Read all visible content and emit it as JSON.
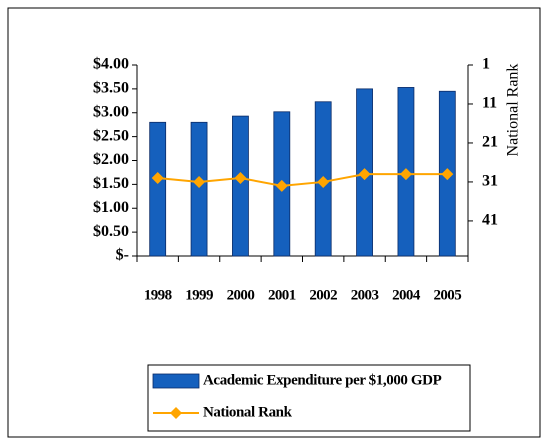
{
  "chart_data": {
    "type": "bar-line",
    "categories": [
      "1998",
      "1999",
      "2000",
      "2001",
      "2002",
      "2003",
      "2004",
      "2005"
    ],
    "series": [
      {
        "name": "Academic Expenditure per $1,000 GDP",
        "type": "bar",
        "color": "#1560bd",
        "values": [
          2.8,
          2.8,
          2.93,
          3.02,
          3.23,
          3.5,
          3.53,
          3.45
        ]
      },
      {
        "name": "National Rank",
        "type": "line",
        "color": "#ffa500",
        "axis": "y2",
        "values": [
          30,
          31,
          30,
          32,
          31,
          29,
          29,
          29
        ]
      }
    ],
    "ylim": [
      0,
      4
    ],
    "yticks": [
      {
        "value": 0,
        "label": "$-"
      },
      {
        "value": 0.5,
        "label": "$0.50"
      },
      {
        "value": 1,
        "label": "$1.00"
      },
      {
        "value": 1.5,
        "label": "$1.50"
      },
      {
        "value": 2,
        "label": "$2.00"
      },
      {
        "value": 2.5,
        "label": "$2.50"
      },
      {
        "value": 3,
        "label": "$3.00"
      },
      {
        "value": 3.5,
        "label": "$3.50"
      },
      {
        "value": 4,
        "label": "$4.00"
      }
    ],
    "y2lim": [
      50,
      1
    ],
    "y2ticks": [
      1,
      11,
      21,
      31,
      41
    ],
    "y2label": "National Rank",
    "legend": "bottom"
  }
}
